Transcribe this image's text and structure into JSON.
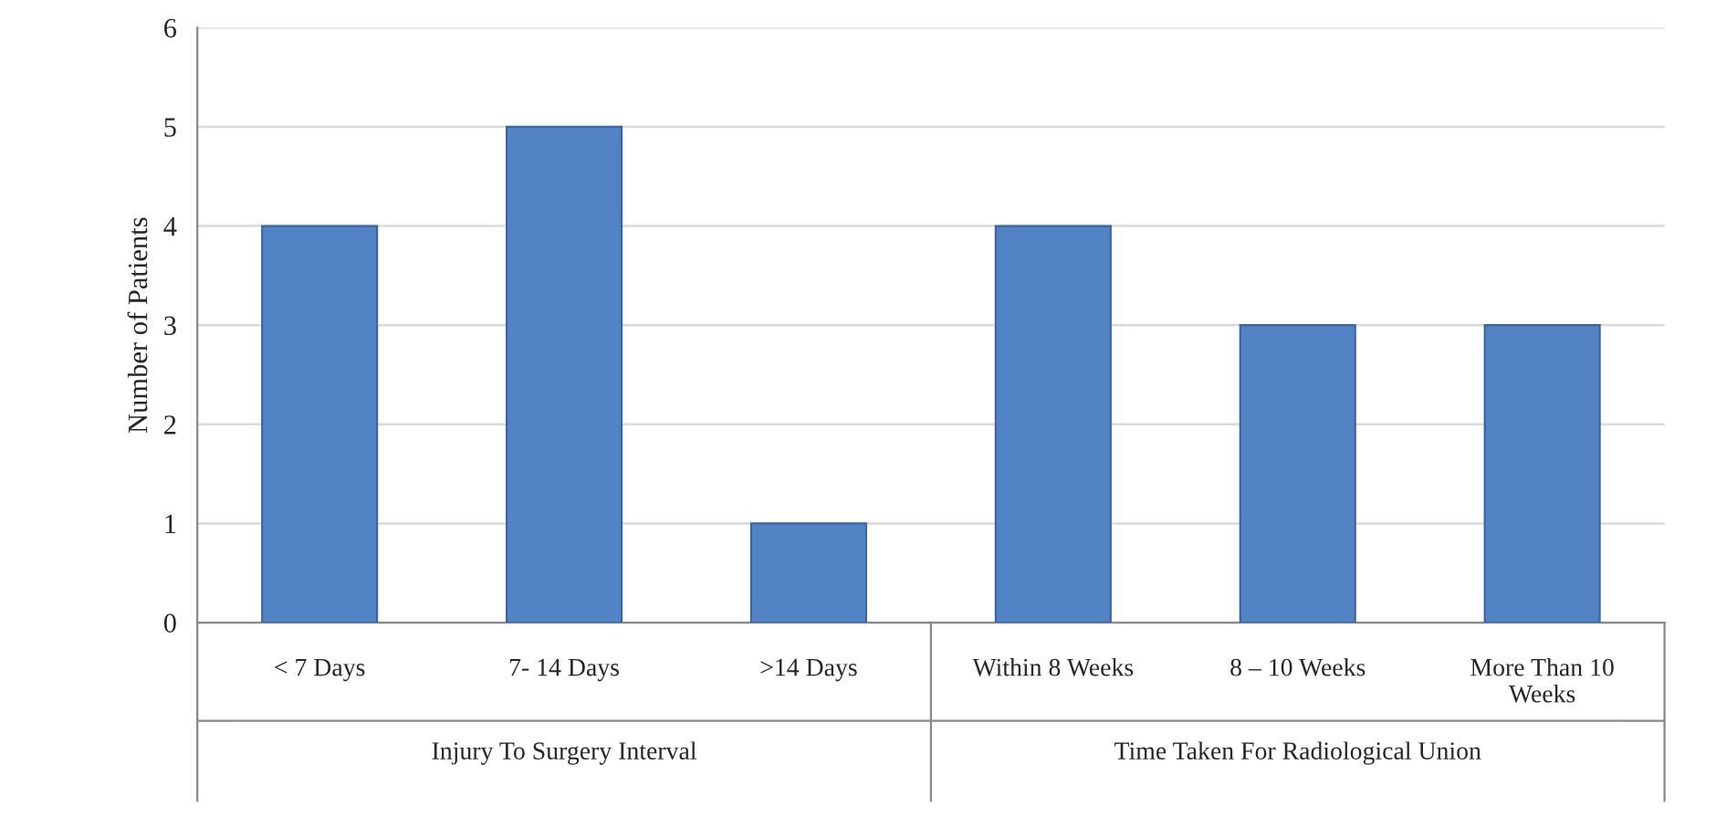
{
  "chart_data": {
    "type": "bar",
    "ylabel": "Number of Patients",
    "categories": [
      "< 7 Days",
      "7- 14 Days",
      ">14 Days",
      "Within 8 Weeks",
      "8 – 10 Weeks",
      "More Than 10\nWeeks"
    ],
    "values": [
      4,
      5,
      1,
      4,
      3,
      3
    ],
    "color": "#5283c4",
    "ylim": [
      0,
      6
    ],
    "yticks": [
      0,
      1,
      2,
      3,
      4,
      5,
      6
    ],
    "grid": "y",
    "annotations": [
      "Injury To Surgery Interval",
      "Time Taken For Radiological Union"
    ]
  }
}
